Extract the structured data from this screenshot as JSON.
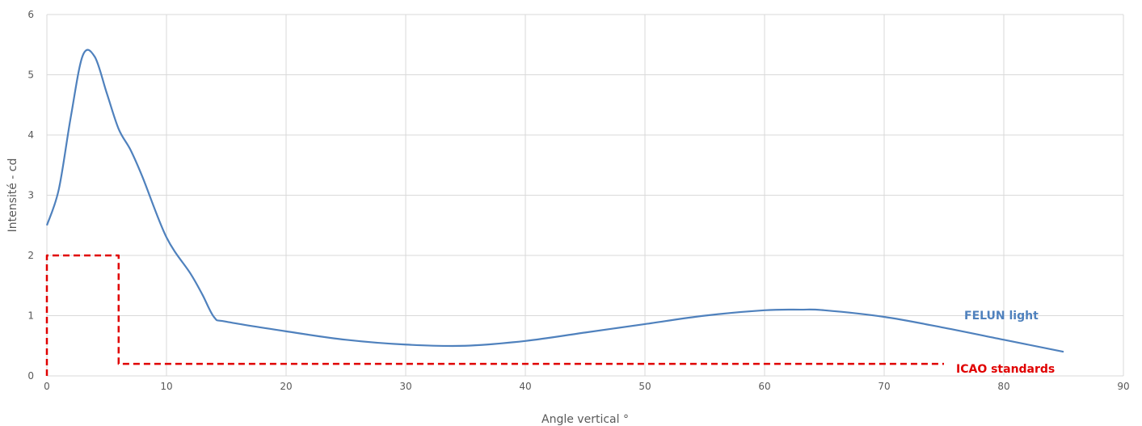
{
  "chart_data": {
    "type": "line",
    "title": "",
    "xlabel": "Angle vertical °",
    "ylabel": "Intensité - cd",
    "xlim": [
      0,
      90
    ],
    "ylim": [
      0,
      6
    ],
    "xticks": [
      0,
      10,
      20,
      30,
      40,
      50,
      60,
      70,
      80,
      90
    ],
    "yticks": [
      0,
      1,
      2,
      3,
      4,
      5,
      6
    ],
    "grid": true,
    "legend": "none",
    "series": [
      {
        "name": "FELUN light",
        "color": "#4f81bd",
        "style": "solid",
        "smooth": true,
        "x": [
          0,
          1,
          2,
          3,
          4,
          5,
          6,
          7,
          8,
          10,
          12,
          13,
          14,
          15,
          20,
          25,
          30,
          35,
          40,
          45,
          50,
          55,
          60,
          63,
          65,
          70,
          75,
          80,
          85
        ],
        "y": [
          2.5,
          3.1,
          4.3,
          5.32,
          5.3,
          4.7,
          4.1,
          3.75,
          3.3,
          2.3,
          1.7,
          1.35,
          0.97,
          0.9,
          0.74,
          0.6,
          0.52,
          0.5,
          0.58,
          0.72,
          0.86,
          1.0,
          1.09,
          1.1,
          1.09,
          0.98,
          0.8,
          0.6,
          0.4
        ]
      },
      {
        "name": "ICAO standards",
        "color": "#e00000",
        "style": "dashed",
        "smooth": false,
        "x": [
          0,
          0,
          6,
          6,
          75
        ],
        "y": [
          0,
          2,
          2,
          0.2,
          0.2
        ]
      }
    ]
  }
}
